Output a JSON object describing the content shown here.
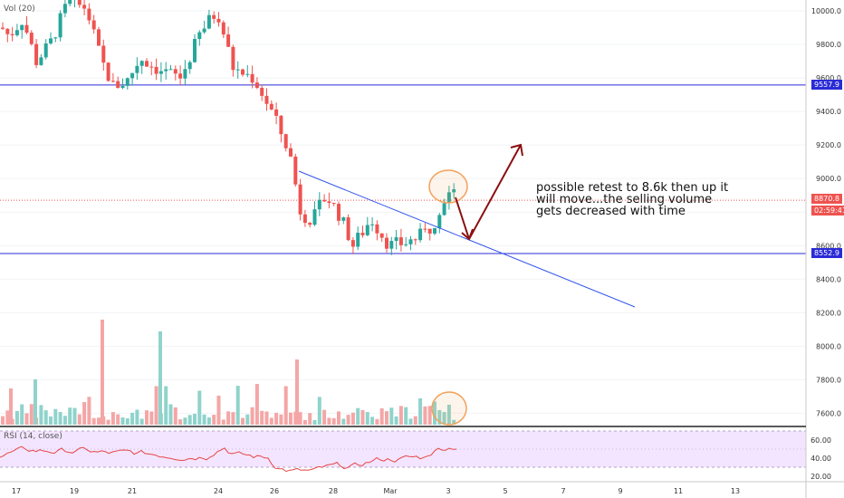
{
  "chart_data": {
    "type": "candlestick",
    "indicators": {
      "volume_label": "Vol (20)",
      "rsi_label": "RSI (14, close)"
    },
    "price_axis": {
      "range": [
        7460,
        10060
      ],
      "ticks": [
        10000,
        9800,
        9600,
        9400,
        9200,
        9000,
        8800,
        8600,
        8400,
        8200,
        8000,
        7800,
        7600
      ],
      "tick_labels": [
        "10000.0",
        "9800.0",
        "9600.0",
        "9400.0",
        "9200.0",
        "9000.0",
        "8800.0",
        "8600.0",
        "8400.0",
        "8200.0",
        "8000.0",
        "7800.0",
        "7600.0"
      ]
    },
    "rsi_axis": {
      "range": [
        17,
        72
      ],
      "ticks": [
        60,
        40,
        20
      ],
      "tick_labels": [
        "60.00",
        "40.00",
        "20.00"
      ],
      "band": [
        30,
        70
      ]
    },
    "time_axis": {
      "labels": [
        "17",
        "19",
        "21",
        "24",
        "26",
        "28",
        "Mar",
        "3",
        "5",
        "7",
        "9",
        "11",
        "13"
      ]
    },
    "price_tags": {
      "resistance": "9557.9",
      "current": "8870.8",
      "countdown": "02:59:41",
      "support": "8552.9"
    },
    "levels": {
      "resistance": 9557.9,
      "current": 8870.8,
      "support": 8552.9
    },
    "annotation": [
      "possible retest to 8.6k then up it",
      "will move...the selling volume",
      "gets decreased with time"
    ],
    "colors": {
      "up": "#26a69a",
      "down": "#ef5350",
      "volume_up": "#8fd3cb",
      "volume_down": "#f4a6a6",
      "level_line": "#2b2bd6",
      "trendline": "#3355ee",
      "current_line": "#ef5350",
      "arrow": "#8b1010",
      "circle": "#f2a15b",
      "rsi_line": "#e64545",
      "rsi_band": "#f3e5ff"
    }
  }
}
